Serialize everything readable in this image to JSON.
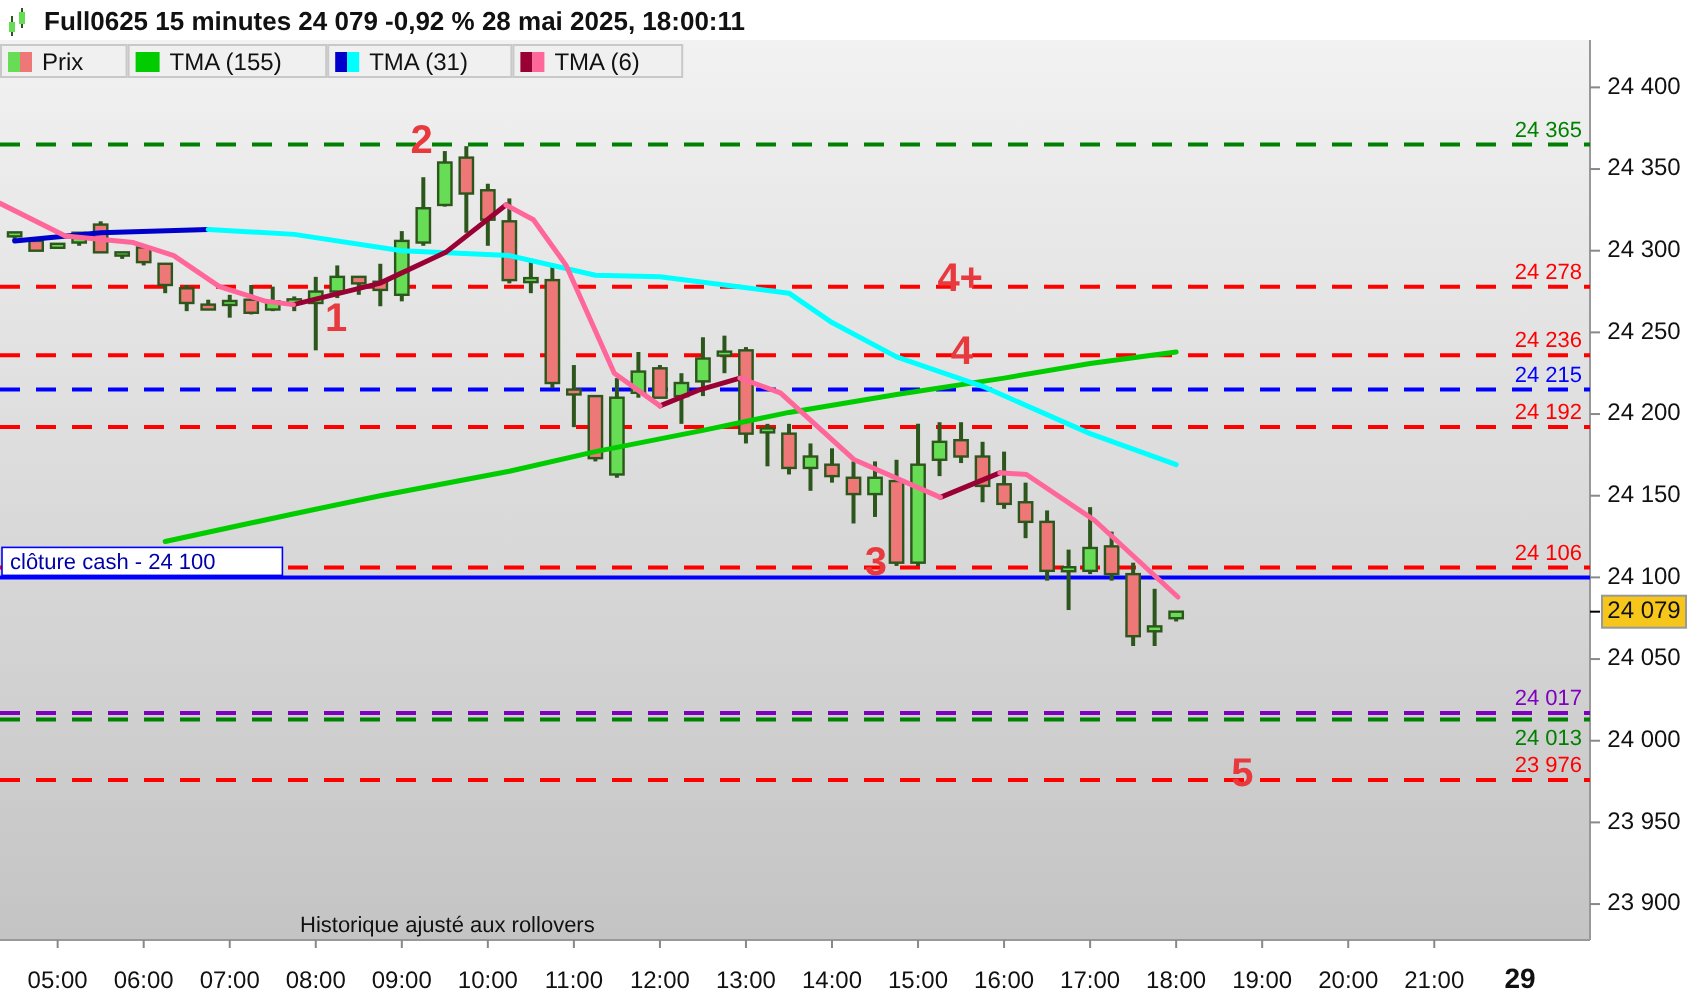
{
  "chart_data": {
    "type": "candlestick",
    "title": "Full0625 15 minutes 24 079 -0,92 % 28 mai 2025, 18:00:11",
    "annotations": [
      "Historique ajusté aux rollovers",
      "29",
      "1",
      {
        "text": "2",
        "x": 9.23,
        "y": 24366
      },
      {
        "text": "3",
        "x": 14.51,
        "y": 24108
      },
      {
        "text": "4",
        "x": 15.51,
        "y": 24237
      },
      {
        "text": "4+",
        "x": 15.49,
        "y": 24282
      },
      {
        "text": "5",
        "x": 18.77,
        "y": 23979
      }
    ],
    "xlim": [
      4.33,
      22.81
    ],
    "xticks": [
      {
        "value": 5,
        "label": "05:00"
      },
      {
        "value": 6,
        "label": "06:00"
      },
      {
        "value": 7,
        "label": "07:00"
      },
      {
        "value": 8,
        "label": "08:00"
      },
      {
        "value": 9,
        "label": "09:00"
      },
      {
        "value": 10,
        "label": "10:00"
      },
      {
        "value": 11,
        "label": "11:00"
      },
      {
        "value": 12,
        "label": "12:00"
      },
      {
        "value": 13,
        "label": "13:00"
      },
      {
        "value": 14,
        "label": "14:00"
      },
      {
        "value": 15,
        "label": "15:00"
      },
      {
        "value": 16,
        "label": "16:00"
      },
      {
        "value": 17,
        "label": "17:00"
      },
      {
        "value": 18,
        "label": "18:00"
      },
      {
        "value": 19,
        "label": "19:00"
      },
      {
        "value": 20,
        "label": "20:00"
      },
      {
        "value": 21,
        "label": "21:00"
      }
    ],
    "ylim": [
      23878,
      24429
    ],
    "yticks": [
      {
        "value": 23900,
        "label": "23 900"
      },
      {
        "value": 23950,
        "label": "23 950"
      },
      {
        "value": 24000,
        "label": "24 000"
      },
      {
        "value": 24050,
        "label": "24 050"
      },
      {
        "value": 24079,
        "label": "24 079"
      },
      {
        "value": 24100,
        "label": "24 100"
      },
      {
        "value": 24150,
        "label": "24 150"
      },
      {
        "value": 24200,
        "label": "24 200"
      },
      {
        "value": 24250,
        "label": "24 250"
      },
      {
        "value": 24300,
        "label": "24 300"
      },
      {
        "value": 24350,
        "label": "24 350"
      },
      {
        "value": 24400,
        "label": "24 400"
      }
    ],
    "legend": "top left",
    "ref_lines": [
      {
        "axis": "y",
        "value": 24365,
        "label": "24 365",
        "color": "#008000",
        "line_style": "dashed"
      },
      {
        "axis": "y",
        "value": 24278,
        "label": "24 278",
        "color": "#ff0000",
        "line_style": "dashed"
      },
      {
        "axis": "y",
        "value": 24236,
        "label": "24 236",
        "color": "#ff0000",
        "line_style": "dashed"
      },
      {
        "axis": "y",
        "value": 24215,
        "label": "24 215",
        "color": "#0000ff",
        "line_style": "dashed"
      },
      {
        "axis": "y",
        "value": 24192,
        "label": "24 192",
        "color": "#ff0000",
        "line_style": "dashed"
      },
      {
        "axis": "y",
        "value": 24106,
        "label": "24 106",
        "color": "#ff0000",
        "line_style": "dashed"
      },
      {
        "axis": "y",
        "value": 24100,
        "label": "clôture cash - 24 100",
        "color": "#0000ff",
        "line_style": "solid"
      },
      {
        "axis": "y",
        "value": 24017,
        "label": "24 017",
        "color": "#8000c0",
        "line_style": "dashed"
      },
      {
        "axis": "y",
        "value": 24013,
        "label": "24 013",
        "color": "#008000",
        "line_style": "dashed"
      },
      {
        "axis": "y",
        "value": 23976,
        "label": "23 976",
        "color": "#ff0000",
        "line_style": "dashed"
      }
    ],
    "series": [
      {
        "name": "Prix",
        "x": [
          4.5,
          4.75,
          5,
          5.25,
          5.5,
          5.75,
          6,
          6.25,
          6.5,
          6.75,
          7,
          7.25,
          7.5,
          7.75,
          8,
          8.25,
          8.5,
          8.75,
          9,
          9.25,
          9.5,
          9.75,
          10,
          10.25,
          10.5,
          10.75,
          11,
          11.25,
          11.5,
          11.75,
          12,
          12.25,
          12.5,
          12.75,
          13,
          13.25,
          13.5,
          13.75,
          14,
          14.25,
          14.5,
          14.75,
          15,
          15.25,
          15.5,
          15.75,
          16,
          16.25,
          16.5,
          16.75,
          17,
          17.25,
          17.5,
          17.75,
          18
        ],
        "ohlc": [
          [
            24310,
            24311,
            24306,
            24310
          ],
          [
            24306,
            24306,
            24300,
            24300
          ],
          [
            24303,
            24304,
            24302,
            24303
          ],
          [
            24305,
            24311,
            24303,
            24311
          ],
          [
            24316,
            24318,
            24299,
            24299
          ],
          [
            24297,
            24299,
            24295,
            24299
          ],
          [
            24302,
            24302,
            24291,
            24293
          ],
          [
            24292,
            24292,
            24274,
            24279
          ],
          [
            24277,
            24279,
            24263,
            24268
          ],
          [
            24267,
            24270,
            24264,
            24264
          ],
          [
            24268,
            24273,
            24259,
            24268
          ],
          [
            24270,
            24279,
            24261,
            24262
          ],
          [
            24264,
            24278,
            24263,
            24269
          ],
          [
            24269,
            24272,
            24263,
            24269
          ],
          [
            24268,
            24284,
            24239,
            24275
          ],
          [
            24275,
            24291,
            24271,
            24284
          ],
          [
            24284,
            24284,
            24273,
            24280
          ],
          [
            24281,
            24292,
            24266,
            24276
          ],
          [
            24273,
            24312,
            24269,
            24306
          ],
          [
            24305,
            24345,
            24303,
            24326
          ],
          [
            24328,
            24361,
            24327,
            24354
          ],
          [
            24357,
            24364,
            24311,
            24335
          ],
          [
            24337,
            24341,
            24303,
            24319
          ],
          [
            24318,
            24332,
            24280,
            24282
          ],
          [
            24282,
            24295,
            24274,
            24282
          ],
          [
            24282,
            24292,
            24216,
            24219
          ],
          [
            24215,
            24230,
            24192,
            24212
          ],
          [
            24211,
            24211,
            24171,
            24173
          ],
          [
            24163,
            24222,
            24161,
            24210
          ],
          [
            24213,
            24238,
            24210,
            24226
          ],
          [
            24228,
            24230,
            24210,
            24210
          ],
          [
            24211,
            24225,
            24194,
            24219
          ],
          [
            24220,
            24247,
            24211,
            24234
          ],
          [
            24237,
            24248,
            24225,
            24237
          ],
          [
            24239,
            24241,
            24182,
            24188
          ],
          [
            24190,
            24194,
            24168,
            24190
          ],
          [
            24188,
            24194,
            24163,
            24167
          ],
          [
            24167,
            24182,
            24153,
            24174
          ],
          [
            24169,
            24179,
            24158,
            24162
          ],
          [
            24161,
            24171,
            24133,
            24151
          ],
          [
            24151,
            24171,
            24137,
            24161
          ],
          [
            24159,
            24172,
            24107,
            24109
          ],
          [
            24109,
            24194,
            24107,
            24169
          ],
          [
            24172,
            24195,
            24162,
            24183
          ],
          [
            24184,
            24195,
            24170,
            24174
          ],
          [
            24174,
            24183,
            24146,
            24156
          ],
          [
            24157,
            24177,
            24142,
            24145
          ],
          [
            24146,
            24158,
            24124,
            24134
          ],
          [
            24134,
            24141,
            24098,
            24104
          ],
          [
            24105,
            24117,
            24080,
            24105
          ],
          [
            24104,
            24143,
            24102,
            24118
          ],
          [
            24119,
            24128,
            24098,
            24102
          ],
          [
            24102,
            24109,
            24058,
            24064
          ],
          [
            24067,
            24093,
            24058,
            24070
          ],
          [
            24075,
            24079,
            24073,
            24079
          ]
        ],
        "colors": [
          "#66dd55",
          "#ee7777",
          "#66dd55",
          "#66dd55",
          "#ee7777",
          "#66dd55",
          "#ee7777",
          "#ee7777",
          "#ee7777",
          "#ee7777",
          "#66dd55",
          "#ee7777",
          "#66dd55",
          "#66dd55",
          "#66dd55",
          "#66dd55",
          "#ee7777",
          "#ee7777",
          "#66dd55",
          "#66dd55",
          "#66dd55",
          "#ee7777",
          "#ee7777",
          "#ee7777",
          "#66dd55",
          "#ee7777",
          "#ee7777",
          "#ee7777",
          "#66dd55",
          "#66dd55",
          "#ee7777",
          "#66dd55",
          "#66dd55",
          "#66dd55",
          "#ee7777",
          "#66dd55",
          "#ee7777",
          "#66dd55",
          "#ee7777",
          "#ee7777",
          "#66dd55",
          "#ee7777",
          "#66dd55",
          "#66dd55",
          "#ee7777",
          "#ee7777",
          "#ee7777",
          "#ee7777",
          "#ee7777",
          "#66dd55",
          "#66dd55",
          "#ee7777",
          "#ee7777",
          "#66dd55",
          "#66dd55"
        ]
      },
      {
        "type": "line",
        "name": "TMA (155)",
        "color": "#00cc00",
        "x": [
          6.25,
          7.75,
          8.75,
          10.25,
          11.25,
          12.5,
          13.5,
          14.75,
          16,
          17,
          18
        ],
        "values": [
          24122,
          24139,
          24150,
          24165,
          24177,
          24190,
          24201,
          24212,
          24222,
          24231,
          24238
        ]
      },
      {
        "type": "line",
        "name": "TMA (31)",
        "color": "#0000cc",
        "x": [
          4.5,
          5.5,
          6.75
        ],
        "values": [
          24306,
          24311,
          24313
        ]
      },
      {
        "type": "line",
        "color": "#00ffff",
        "x": [
          6.75,
          7.75,
          9,
          10.25,
          11.25,
          12,
          13.5,
          14,
          14.75,
          15.75,
          17,
          18
        ],
        "values": [
          24313,
          24310,
          24300,
          24297,
          24285,
          24284,
          24274,
          24256,
          24235,
          24217,
          24188,
          24169
        ]
      },
      {
        "type": "line",
        "name": "TMA (6)",
        "color": "#990033",
        "x": [
          7.74,
          8.74,
          9.51,
          10.21,
          11,
          12,
          12.47,
          12.93,
          14,
          15.26,
          15.95
        ],
        "values": [
          24267,
          24280,
          24299,
          24328,
          null,
          24205,
          24215,
          24222,
          null,
          24149,
          24164
        ]
      },
      {
        "type": "line",
        "color": "#ff6699",
        "x": [
          4.33,
          5.09,
          5.88,
          6.35,
          6.88,
          7.42,
          7.74,
          8.74,
          10.21,
          10.53,
          10.91,
          11.47,
          12,
          12.47,
          12.93,
          13.4,
          14.26,
          15.26,
          15.6,
          15.95,
          16.26,
          17.05,
          18.02
        ],
        "values": [
          24329,
          24309,
          24305,
          24297,
          24278,
          24269,
          24267,
          null,
          24328,
          24319,
          24291,
          24225,
          24205,
          null,
          24222,
          24213,
          24172,
          24149,
          null,
          24164,
          24163,
          24135,
          24088
        ]
      }
    ]
  }
}
